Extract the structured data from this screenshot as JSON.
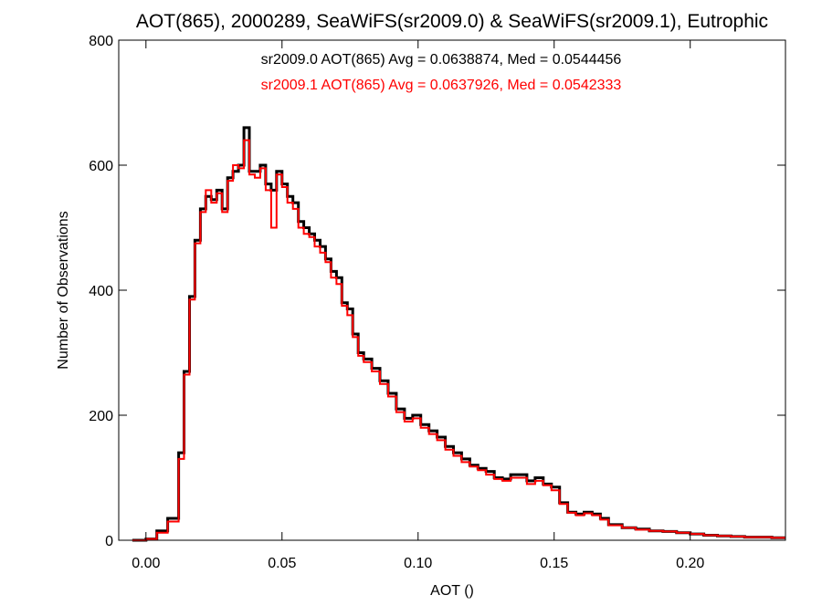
{
  "chart_data": {
    "type": "line",
    "title": "AOT(865), 2000289, SeaWiFS(sr2009.0) & SeaWiFS(sr2009.1), Eutrophic",
    "xlabel": "AOT ()",
    "ylabel": "Number of Observations",
    "xlim": [
      -0.01,
      0.235
    ],
    "ylim": [
      0,
      800
    ],
    "xticks": [
      0.0,
      0.05,
      0.1,
      0.15,
      0.2
    ],
    "xtick_labels": [
      "0.00",
      "0.05",
      "0.10",
      "0.15",
      "0.20"
    ],
    "yticks": [
      0,
      200,
      400,
      600,
      800
    ],
    "ytick_labels": [
      "0",
      "200",
      "400",
      "600",
      "800"
    ],
    "annotations": [
      {
        "text": "sr2009.0 AOT(865) Avg = 0.0638874, Med = 0.0544456",
        "color": "#000000"
      },
      {
        "text": "sr2009.1 AOT(865) Avg = 0.0637926, Med = 0.0542333",
        "color": "#ff0000"
      }
    ],
    "series": [
      {
        "color": "#000000",
        "x": [
          -0.005,
          0.0,
          0.004,
          0.008,
          0.012,
          0.014,
          0.016,
          0.018,
          0.02,
          0.022,
          0.024,
          0.026,
          0.028,
          0.03,
          0.032,
          0.034,
          0.036,
          0.038,
          0.04,
          0.042,
          0.044,
          0.046,
          0.048,
          0.05,
          0.052,
          0.054,
          0.056,
          0.058,
          0.06,
          0.062,
          0.064,
          0.066,
          0.068,
          0.07,
          0.072,
          0.074,
          0.076,
          0.078,
          0.08,
          0.083,
          0.086,
          0.089,
          0.092,
          0.095,
          0.098,
          0.101,
          0.104,
          0.107,
          0.11,
          0.113,
          0.116,
          0.119,
          0.122,
          0.125,
          0.128,
          0.131,
          0.134,
          0.137,
          0.14,
          0.143,
          0.146,
          0.149,
          0.152,
          0.155,
          0.158,
          0.161,
          0.164,
          0.167,
          0.17,
          0.175,
          0.18,
          0.185,
          0.19,
          0.195,
          0.2,
          0.205,
          0.21,
          0.215,
          0.22,
          0.225,
          0.23,
          0.235
        ],
        "y": [
          0,
          2,
          15,
          35,
          140,
          270,
          390,
          480,
          530,
          550,
          545,
          560,
          530,
          580,
          590,
          600,
          660,
          590,
          590,
          600,
          570,
          560,
          590,
          570,
          550,
          540,
          510,
          500,
          490,
          480,
          470,
          450,
          430,
          420,
          380,
          370,
          330,
          300,
          290,
          275,
          255,
          235,
          210,
          195,
          200,
          185,
          175,
          165,
          150,
          140,
          130,
          120,
          115,
          110,
          100,
          98,
          105,
          105,
          95,
          100,
          90,
          85,
          60,
          45,
          42,
          45,
          42,
          35,
          25,
          20,
          18,
          15,
          14,
          12,
          10,
          8,
          7,
          6,
          5,
          5,
          4,
          4
        ]
      },
      {
        "color": "#ff0000",
        "x": [
          -0.005,
          0.0,
          0.004,
          0.008,
          0.012,
          0.014,
          0.016,
          0.018,
          0.02,
          0.022,
          0.024,
          0.026,
          0.028,
          0.03,
          0.032,
          0.034,
          0.036,
          0.038,
          0.04,
          0.042,
          0.044,
          0.046,
          0.048,
          0.05,
          0.052,
          0.054,
          0.056,
          0.058,
          0.06,
          0.062,
          0.064,
          0.066,
          0.068,
          0.07,
          0.072,
          0.074,
          0.076,
          0.078,
          0.08,
          0.083,
          0.086,
          0.089,
          0.092,
          0.095,
          0.098,
          0.101,
          0.104,
          0.107,
          0.11,
          0.113,
          0.116,
          0.119,
          0.122,
          0.125,
          0.128,
          0.131,
          0.134,
          0.137,
          0.14,
          0.143,
          0.146,
          0.149,
          0.152,
          0.155,
          0.158,
          0.161,
          0.164,
          0.167,
          0.17,
          0.175,
          0.18,
          0.185,
          0.19,
          0.195,
          0.2,
          0.205,
          0.21,
          0.215,
          0.22,
          0.225,
          0.23,
          0.235
        ],
        "y": [
          0,
          2,
          12,
          30,
          130,
          265,
          385,
          475,
          525,
          560,
          540,
          555,
          525,
          575,
          600,
          595,
          640,
          585,
          580,
          595,
          560,
          500,
          585,
          565,
          540,
          530,
          500,
          490,
          485,
          470,
          460,
          445,
          420,
          410,
          375,
          360,
          325,
          295,
          285,
          270,
          250,
          230,
          205,
          190,
          195,
          180,
          170,
          160,
          145,
          135,
          125,
          118,
          112,
          105,
          98,
          95,
          100,
          100,
          90,
          95,
          88,
          80,
          58,
          44,
          40,
          43,
          40,
          33,
          24,
          20,
          17,
          15,
          14,
          12,
          10,
          8,
          7,
          6,
          5,
          5,
          4,
          4
        ]
      }
    ]
  }
}
